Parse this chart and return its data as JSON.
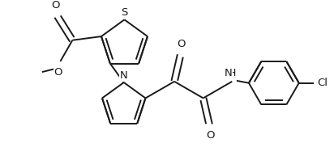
{
  "background_color": "#ffffff",
  "line_color": "#1a1a1a",
  "line_width": 1.4,
  "figsize": [
    4.12,
    1.93
  ],
  "dpi": 100,
  "xlim": [
    0,
    412
  ],
  "ylim": [
    0,
    193
  ]
}
